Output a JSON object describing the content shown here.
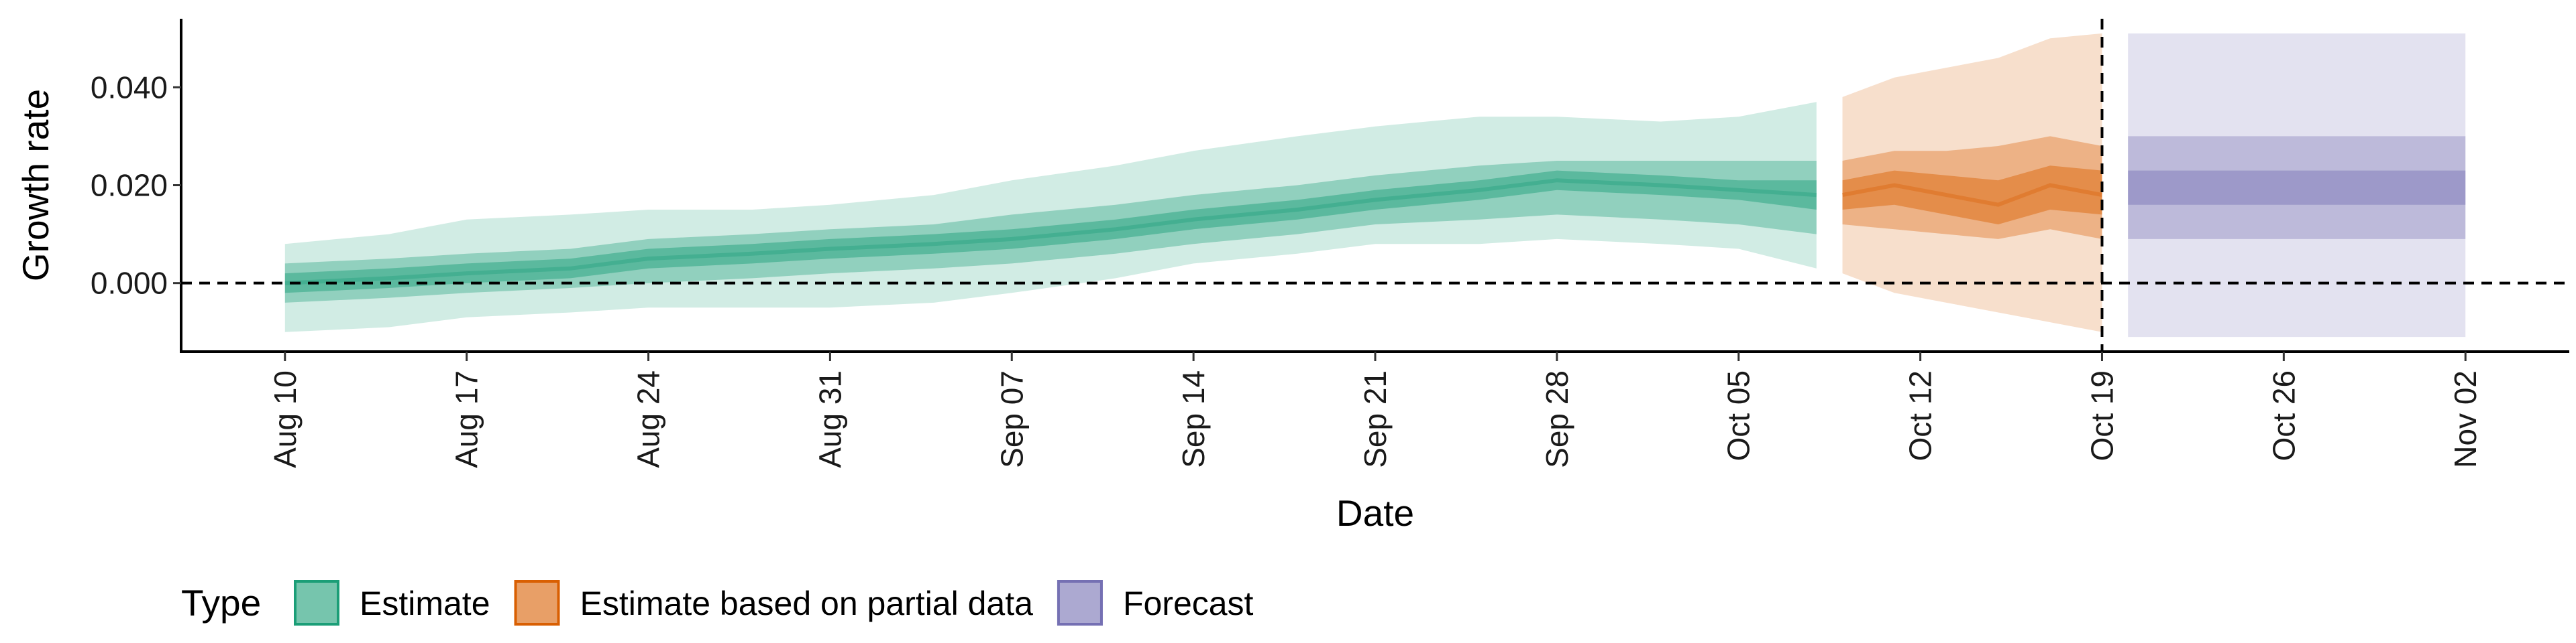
{
  "chart_data": {
    "type": "area",
    "xlabel": "Date",
    "ylabel": "Growth rate",
    "x_axis_type": "date",
    "xlim": [
      "2020-08-06",
      "2020-11-06"
    ],
    "ylim": [
      -0.014,
      0.054
    ],
    "x_ticks": [
      "2020-08-10",
      "2020-08-17",
      "2020-08-24",
      "2020-08-31",
      "2020-09-07",
      "2020-09-14",
      "2020-09-21",
      "2020-09-28",
      "2020-10-05",
      "2020-10-12",
      "2020-10-19",
      "2020-10-26",
      "2020-11-02"
    ],
    "x_tick_labels": [
      "Aug 10",
      "Aug 17",
      "Aug 24",
      "Aug 31",
      "Sep 07",
      "Sep 14",
      "Sep 21",
      "Sep 28",
      "Oct 05",
      "Oct 12",
      "Oct 19",
      "Oct 26",
      "Nov 02"
    ],
    "y_ticks": [
      0,
      0.02,
      0.04
    ],
    "y_tick_labels": [
      "0.000",
      "0.020",
      "0.040"
    ],
    "hline": 0,
    "vline": "2020-10-19",
    "grid": false,
    "legend": {
      "title": "Type",
      "position": "bottom",
      "entries": [
        {
          "label": "Estimate",
          "color": "#1b9e77"
        },
        {
          "label": "Estimate based on partial data",
          "color": "#d95f02"
        },
        {
          "label": "Forecast",
          "color": "#7570b3"
        }
      ]
    },
    "series": [
      {
        "name": "Estimate",
        "color": "#1b9e77",
        "x": [
          "2020-08-10",
          "2020-08-14",
          "2020-08-17",
          "2020-08-21",
          "2020-08-24",
          "2020-08-28",
          "2020-08-31",
          "2020-09-04",
          "2020-09-07",
          "2020-09-11",
          "2020-09-14",
          "2020-09-18",
          "2020-09-21",
          "2020-09-25",
          "2020-09-28",
          "2020-10-02",
          "2020-10-05",
          "2020-10-08"
        ],
        "median": [
          0.0,
          0.001,
          0.002,
          0.003,
          0.005,
          0.006,
          0.007,
          0.008,
          0.009,
          0.011,
          0.013,
          0.015,
          0.017,
          0.019,
          0.021,
          0.02,
          0.019,
          0.018
        ],
        "lower_20": [
          -0.002,
          -0.001,
          0.0,
          0.001,
          0.003,
          0.004,
          0.005,
          0.006,
          0.007,
          0.009,
          0.011,
          0.013,
          0.015,
          0.017,
          0.019,
          0.018,
          0.017,
          0.015
        ],
        "upper_20": [
          0.002,
          0.003,
          0.004,
          0.005,
          0.007,
          0.008,
          0.009,
          0.01,
          0.011,
          0.013,
          0.015,
          0.017,
          0.019,
          0.021,
          0.023,
          0.022,
          0.021,
          0.021
        ],
        "lower_50": [
          -0.004,
          -0.003,
          -0.002,
          -0.001,
          0.0,
          0.001,
          0.002,
          0.003,
          0.004,
          0.006,
          0.008,
          0.01,
          0.012,
          0.013,
          0.014,
          0.013,
          0.012,
          0.01
        ],
        "upper_50": [
          0.004,
          0.005,
          0.006,
          0.007,
          0.009,
          0.01,
          0.011,
          0.012,
          0.014,
          0.016,
          0.018,
          0.02,
          0.022,
          0.024,
          0.025,
          0.025,
          0.025,
          0.025
        ],
        "lower_90": [
          -0.01,
          -0.009,
          -0.007,
          -0.006,
          -0.005,
          -0.005,
          -0.005,
          -0.004,
          -0.002,
          0.001,
          0.004,
          0.006,
          0.008,
          0.008,
          0.009,
          0.008,
          0.007,
          0.003
        ],
        "upper_90": [
          0.008,
          0.01,
          0.013,
          0.014,
          0.015,
          0.015,
          0.016,
          0.018,
          0.021,
          0.024,
          0.027,
          0.03,
          0.032,
          0.034,
          0.034,
          0.033,
          0.034,
          0.037
        ]
      },
      {
        "name": "Estimate based on partial data",
        "color": "#d95f02",
        "x": [
          "2020-10-09",
          "2020-10-11",
          "2020-10-13",
          "2020-10-15",
          "2020-10-17",
          "2020-10-19"
        ],
        "median": [
          0.018,
          0.02,
          0.018,
          0.016,
          0.02,
          0.018
        ],
        "lower_20": [
          0.015,
          0.016,
          0.014,
          0.012,
          0.015,
          0.014
        ],
        "upper_20": [
          0.021,
          0.023,
          0.022,
          0.021,
          0.024,
          0.023
        ],
        "lower_50": [
          0.012,
          0.011,
          0.01,
          0.009,
          0.011,
          0.009
        ],
        "upper_50": [
          0.025,
          0.027,
          0.027,
          0.028,
          0.03,
          0.028
        ],
        "lower_90": [
          0.002,
          -0.002,
          -0.004,
          -0.006,
          -0.008,
          -0.01
        ],
        "upper_90": [
          0.038,
          0.042,
          0.044,
          0.046,
          0.05,
          0.051
        ]
      },
      {
        "name": "Forecast",
        "color": "#7570b3",
        "x": [
          "2020-10-20",
          "2020-11-02"
        ],
        "median": [
          0.019,
          0.019
        ],
        "lower_20": [
          0.016,
          0.016
        ],
        "upper_20": [
          0.023,
          0.023
        ],
        "lower_50": [
          0.009,
          0.009
        ],
        "upper_50": [
          0.03,
          0.03
        ],
        "lower_90": [
          -0.011,
          -0.011
        ],
        "upper_90": [
          0.051,
          0.051
        ]
      }
    ]
  }
}
